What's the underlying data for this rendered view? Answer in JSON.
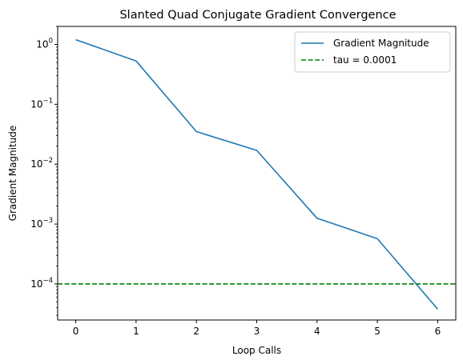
{
  "chart_data": {
    "type": "line",
    "title": "Slanted Quad Conjugate Gradient Convergence",
    "xlabel": "Loop Calls",
    "ylabel": "Gradient Magnitude",
    "yscale": "log",
    "xlim": [
      -0.3,
      6.3
    ],
    "ylim": [
      2.5e-05,
      2.0
    ],
    "x_ticks": [
      0,
      1,
      2,
      3,
      4,
      5,
      6
    ],
    "y_ticks": [
      {
        "value": 0.0001,
        "base": "10",
        "exp": "−4"
      },
      {
        "value": 0.001,
        "base": "10",
        "exp": "−3"
      },
      {
        "value": 0.01,
        "base": "10",
        "exp": "−2"
      },
      {
        "value": 0.1,
        "base": "10",
        "exp": "−1"
      },
      {
        "value": 1,
        "base": "10",
        "exp": "0"
      }
    ],
    "series": [
      {
        "name": "Gradient Magnitude",
        "color": "#1f77b4",
        "style": "solid",
        "x": [
          0,
          1,
          2,
          3,
          4,
          5,
          6
        ],
        "y": [
          1.2,
          0.53,
          0.035,
          0.017,
          0.00125,
          0.00057,
          3.8e-05
        ]
      }
    ],
    "hlines": [
      {
        "name": "tau = 0.0001",
        "y": 0.0001,
        "color": "#008000",
        "style": "dashed"
      }
    ],
    "legend": {
      "position": "top-right",
      "entries": [
        "Gradient Magnitude",
        "tau = 0.0001"
      ]
    },
    "grid": false
  }
}
